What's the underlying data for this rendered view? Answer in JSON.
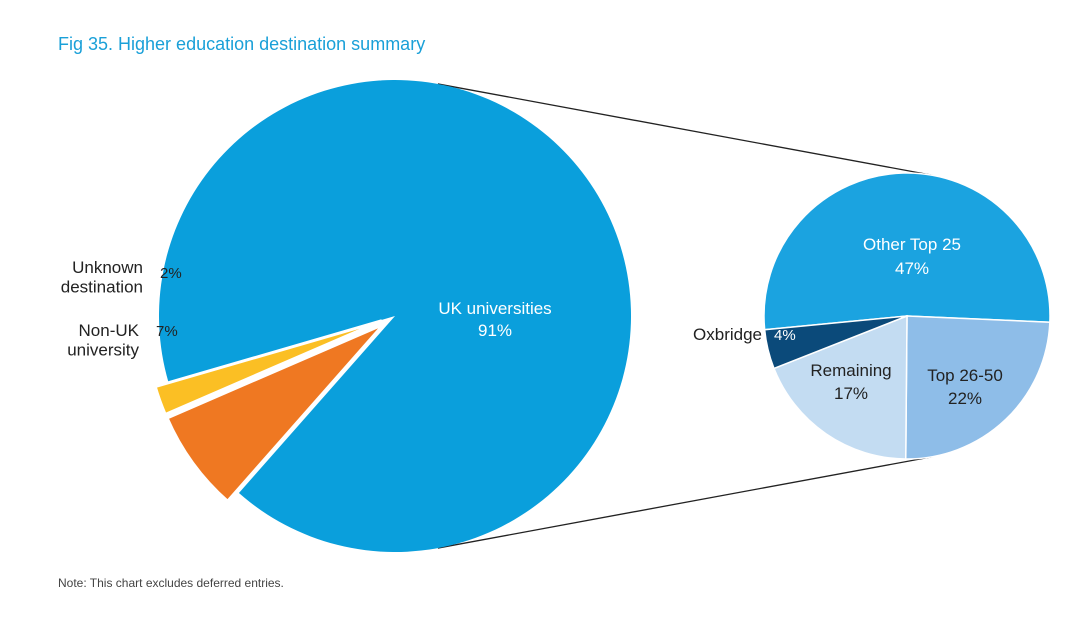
{
  "title": "Fig 35. Higher education destination summary",
  "note": "Note: This chart excludes deferred entries.",
  "colors": {
    "title": "#1aa0d8",
    "uk_universities": "#0a9fdc",
    "non_uk_university": "#ef7822",
    "unknown_destination": "#fbbf24",
    "other_top_25": "#1ba3e0",
    "top_26_50": "#8ebde8",
    "remaining": "#c3dcf2",
    "oxbridge": "#0b4a7a"
  },
  "chart_data": [
    {
      "type": "pie",
      "title": "",
      "slices": [
        {
          "key": "uk",
          "label": "UK universities",
          "value_label": "91%",
          "value": 91,
          "color": "#0a9fdc"
        },
        {
          "key": "non_uk",
          "label": "Non-UK\nuniversity",
          "value_label": "7%",
          "value": 7,
          "color": "#ef7822"
        },
        {
          "key": "unknown",
          "label": "Unknown\ndestination",
          "value_label": "2%",
          "value": 2,
          "color": "#fbbf24"
        }
      ]
    },
    {
      "type": "pie",
      "title": "",
      "breakdown_of": "UK universities",
      "slices": [
        {
          "key": "other25",
          "label": "Other Top 25",
          "value_label": "47%",
          "value": 47,
          "color": "#1ba3e0"
        },
        {
          "key": "top2650",
          "label": "Top 26-50",
          "value_label": "22%",
          "value": 22,
          "color": "#8ebde8"
        },
        {
          "key": "remaining",
          "label": "Remaining",
          "value_label": "17%",
          "value": 17,
          "color": "#c3dcf2"
        },
        {
          "key": "oxbridge",
          "label": "Oxbridge",
          "value_label": "4%",
          "value": 4,
          "color": "#0b4a7a"
        }
      ]
    }
  ]
}
